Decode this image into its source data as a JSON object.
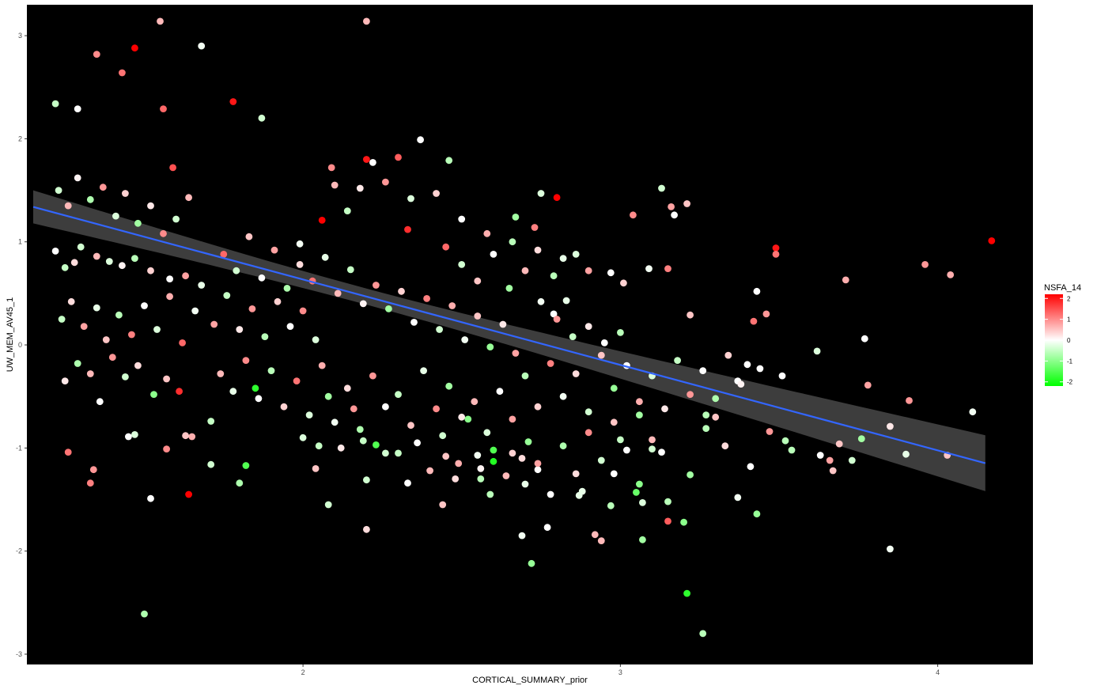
{
  "chart_data": {
    "type": "scatter",
    "xlabel": "CORTICAL_SUMMARY_prior",
    "ylabel": "UW_MEM_AV45_1",
    "xlim": [
      1.13,
      4.3
    ],
    "ylim": [
      -3.1,
      3.3
    ],
    "x_ticks": [
      2,
      3,
      4
    ],
    "y_ticks": [
      -3,
      -2,
      -1,
      0,
      1,
      2,
      3
    ],
    "background": "#000000",
    "grid": false,
    "legend": {
      "title": "NSFA_14",
      "position": "right",
      "type": "gradient",
      "ticks": [
        2,
        1,
        0,
        -1,
        -2
      ],
      "range": [
        -2.2,
        2.2
      ],
      "colors": {
        "low": "#00ff00",
        "mid": "#ffffff",
        "high": "#ff0000"
      }
    },
    "regression": {
      "method": "lm",
      "line_color": "#3366ff",
      "band_color": "#3d3d3d",
      "x_range": [
        1.15,
        4.15
      ],
      "intercept": 2.2925,
      "slope": -0.8289,
      "se_at_mean": 0.04,
      "se_slope_scale": 0.068,
      "x_mean": 2.2
    },
    "points_hint": "Approximately 1000 observations; selected readable points listed below (x, y, NSFA_14)",
    "points": [
      [
        1.55,
        3.14,
        0.6
      ],
      [
        2.2,
        3.14,
        0.6
      ],
      [
        1.68,
        2.9,
        -0.1
      ],
      [
        1.47,
        2.88,
        2.2
      ],
      [
        1.35,
        2.82,
        1.0
      ],
      [
        1.43,
        2.64,
        1.2
      ],
      [
        1.78,
        2.36,
        2.0
      ],
      [
        1.56,
        2.29,
        1.3
      ],
      [
        1.22,
        2.34,
        -0.5
      ],
      [
        1.29,
        2.29,
        0.0
      ],
      [
        1.87,
        2.2,
        -0.4
      ],
      [
        2.37,
        1.99,
        0.0
      ],
      [
        1.59,
        1.72,
        1.5
      ],
      [
        2.2,
        1.8,
        2.0
      ],
      [
        2.3,
        1.82,
        1.4
      ],
      [
        2.22,
        1.77,
        0.0
      ],
      [
        2.46,
        1.79,
        -0.6
      ],
      [
        2.09,
        1.72,
        1.0
      ],
      [
        2.8,
        1.43,
        2.2
      ],
      [
        2.75,
        1.47,
        -0.3
      ],
      [
        3.13,
        1.52,
        -0.4
      ],
      [
        3.16,
        1.34,
        0.8
      ],
      [
        3.21,
        1.37,
        0.5
      ],
      [
        3.17,
        1.26,
        0.0
      ],
      [
        3.04,
        1.26,
        1.0
      ],
      [
        2.73,
        1.14,
        1.1
      ],
      [
        2.67,
        1.24,
        -0.8
      ],
      [
        2.06,
        1.21,
        2.2
      ],
      [
        2.33,
        1.12,
        1.8
      ],
      [
        1.99,
        0.98,
        -0.1
      ],
      [
        3.49,
        0.94,
        2.0
      ],
      [
        3.49,
        0.88,
        1.2
      ],
      [
        4.17,
        1.01,
        2.2
      ],
      [
        3.96,
        0.78,
        0.9
      ],
      [
        4.04,
        0.68,
        0.7
      ],
      [
        3.71,
        0.63,
        0.7
      ],
      [
        3.43,
        0.52,
        0.0
      ],
      [
        3.46,
        0.3,
        0.9
      ],
      [
        3.42,
        0.23,
        1.2
      ],
      [
        3.15,
        0.74,
        1.1
      ],
      [
        3.09,
        0.74,
        -0.1
      ],
      [
        2.86,
        0.88,
        -0.3
      ],
      [
        2.97,
        0.7,
        0.0
      ],
      [
        3.01,
        0.6,
        0.4
      ],
      [
        2.79,
        0.67,
        -0.6
      ],
      [
        2.83,
        0.43,
        -0.2
      ],
      [
        2.79,
        0.3,
        0.0
      ],
      [
        3.22,
        0.29,
        0.5
      ],
      [
        3.77,
        0.06,
        0.0
      ],
      [
        3.62,
        -0.06,
        -0.3
      ],
      [
        3.63,
        -1.07,
        0.0
      ],
      [
        3.67,
        -1.22,
        0.5
      ],
      [
        3.69,
        -0.96,
        0.5
      ],
      [
        3.66,
        -1.12,
        0.8
      ],
      [
        3.73,
        -1.12,
        -0.4
      ],
      [
        3.78,
        -0.39,
        0.8
      ],
      [
        3.76,
        -0.91,
        -0.8
      ],
      [
        3.91,
        -0.54,
        0.9
      ],
      [
        3.85,
        -0.79,
        0.2
      ],
      [
        3.9,
        -1.06,
        -0.2
      ],
      [
        4.03,
        -1.07,
        0.5
      ],
      [
        4.11,
        -0.65,
        -0.1
      ],
      [
        3.85,
        -1.98,
        -0.1
      ],
      [
        3.52,
        -0.93,
        -0.6
      ],
      [
        3.54,
        -1.02,
        -0.6
      ],
      [
        3.51,
        -0.3,
        0.0
      ],
      [
        3.44,
        -0.23,
        0.0
      ],
      [
        3.4,
        -0.19,
        0.0
      ],
      [
        3.37,
        -0.35,
        0.0
      ],
      [
        3.47,
        -0.84,
        0.9
      ],
      [
        3.43,
        -1.64,
        -0.9
      ],
      [
        3.37,
        -1.48,
        -0.1
      ],
      [
        3.41,
        -1.18,
        0.0
      ],
      [
        3.33,
        -0.98,
        0.3
      ],
      [
        3.3,
        -0.7,
        0.5
      ],
      [
        3.27,
        -0.68,
        -0.6
      ],
      [
        3.27,
        -0.81,
        -0.6
      ],
      [
        3.26,
        -2.8,
        -0.6
      ],
      [
        3.21,
        -2.41,
        -1.8
      ],
      [
        3.2,
        -1.72,
        -1.0
      ],
      [
        3.22,
        -1.26,
        -0.8
      ],
      [
        3.13,
        -1.04,
        0.0
      ],
      [
        3.1,
        -1.01,
        -0.4
      ],
      [
        3.15,
        -1.71,
        1.4
      ],
      [
        3.15,
        -1.52,
        -0.6
      ],
      [
        3.07,
        -1.53,
        -0.3
      ],
      [
        3.07,
        -1.89,
        -0.8
      ],
      [
        3.05,
        -1.43,
        -1.3
      ],
      [
        3.06,
        -1.35,
        -1.0
      ],
      [
        3.0,
        -0.92,
        -0.5
      ],
      [
        2.98,
        -1.25,
        0.0
      ],
      [
        2.97,
        -1.56,
        -0.6
      ],
      [
        2.94,
        -1.9,
        0.6
      ],
      [
        2.92,
        -1.84,
        0.6
      ],
      [
        2.88,
        -1.42,
        -0.2
      ],
      [
        2.87,
        -1.46,
        -0.2
      ],
      [
        2.72,
        -2.12,
        -0.9
      ],
      [
        2.69,
        -1.85,
        -0.1
      ],
      [
        2.77,
        -1.77,
        0.0
      ],
      [
        2.74,
        -1.21,
        0.0
      ],
      [
        2.69,
        -1.1,
        0.3
      ],
      [
        2.71,
        -0.94,
        -0.9
      ],
      [
        2.64,
        -1.27,
        0.6
      ],
      [
        2.59,
        -1.45,
        -0.6
      ],
      [
        2.56,
        -1.3,
        -0.6
      ],
      [
        2.6,
        -1.13,
        -1.9
      ],
      [
        2.6,
        -1.02,
        -1.5
      ],
      [
        2.55,
        -1.07,
        -0.1
      ],
      [
        2.49,
        -1.15,
        0.7
      ],
      [
        2.45,
        -1.08,
        0.5
      ],
      [
        2.44,
        -1.55,
        0.5
      ],
      [
        2.33,
        -1.34,
        0.0
      ],
      [
        2.26,
        -1.05,
        -0.4
      ],
      [
        2.23,
        -0.97,
        -1.5
      ],
      [
        2.19,
        -0.93,
        -0.5
      ],
      [
        2.2,
        -1.31,
        -0.4
      ],
      [
        2.2,
        -1.79,
        0.3
      ],
      [
        2.08,
        -1.55,
        -0.4
      ],
      [
        2.05,
        -0.98,
        -0.5
      ],
      [
        1.64,
        -1.45,
        2.2
      ],
      [
        1.52,
        -1.49,
        0.0
      ],
      [
        1.57,
        -1.01,
        1.0
      ],
      [
        1.65,
        -0.89,
        0.7
      ],
      [
        1.71,
        -1.16,
        -0.4
      ],
      [
        1.82,
        -1.17,
        -1.5
      ],
      [
        1.8,
        -1.34,
        -0.7
      ],
      [
        1.5,
        -2.61,
        -0.7
      ],
      [
        1.34,
        -1.21,
        0.9
      ],
      [
        1.33,
        -1.34,
        1.1
      ],
      [
        1.26,
        -1.04,
        1.2
      ],
      [
        1.45,
        -0.89,
        0.0
      ],
      [
        1.47,
        -0.87,
        -0.3
      ],
      [
        1.61,
        -0.45,
        1.8
      ],
      [
        1.63,
        -0.88,
        0.5
      ],
      [
        1.71,
        -0.74,
        -0.5
      ],
      [
        1.85,
        -0.42,
        -1.8
      ],
      [
        1.22,
        0.91,
        0.0
      ],
      [
        1.25,
        0.75,
        -0.5
      ],
      [
        1.28,
        0.8,
        0.3
      ],
      [
        1.3,
        0.95,
        -0.4
      ],
      [
        1.35,
        0.86,
        0.6
      ],
      [
        1.39,
        0.81,
        -0.3
      ],
      [
        1.43,
        0.77,
        0.1
      ],
      [
        1.47,
        0.84,
        -0.6
      ],
      [
        1.52,
        0.72,
        0.4
      ],
      [
        1.58,
        0.64,
        0.0
      ],
      [
        1.63,
        0.67,
        0.8
      ],
      [
        1.68,
        0.58,
        -0.2
      ],
      [
        1.23,
        1.5,
        -0.4
      ],
      [
        1.26,
        1.35,
        0.6
      ],
      [
        1.29,
        1.62,
        0.1
      ],
      [
        1.33,
        1.41,
        -0.7
      ],
      [
        1.37,
        1.53,
        0.9
      ],
      [
        1.41,
        1.25,
        -0.3
      ],
      [
        1.44,
        1.47,
        0.4
      ],
      [
        1.48,
        1.18,
        -0.8
      ],
      [
        1.52,
        1.35,
        0.2
      ],
      [
        1.56,
        1.08,
        1.0
      ],
      [
        1.6,
        1.22,
        -0.4
      ],
      [
        1.64,
        1.43,
        0.6
      ],
      [
        1.24,
        0.25,
        -0.5
      ],
      [
        1.27,
        0.42,
        0.3
      ],
      [
        1.31,
        0.18,
        0.8
      ],
      [
        1.35,
        0.36,
        -0.2
      ],
      [
        1.38,
        0.05,
        0.5
      ],
      [
        1.42,
        0.29,
        -0.6
      ],
      [
        1.46,
        0.1,
        1.1
      ],
      [
        1.5,
        0.38,
        0.0
      ],
      [
        1.54,
        0.15,
        -0.3
      ],
      [
        1.58,
        0.47,
        0.7
      ],
      [
        1.62,
        0.02,
        1.3
      ],
      [
        1.66,
        0.33,
        -0.1
      ],
      [
        1.25,
        -0.35,
        0.2
      ],
      [
        1.29,
        -0.18,
        -0.7
      ],
      [
        1.33,
        -0.28,
        0.6
      ],
      [
        1.36,
        -0.55,
        0.0
      ],
      [
        1.4,
        -0.12,
        0.9
      ],
      [
        1.44,
        -0.31,
        -0.4
      ],
      [
        1.48,
        -0.2,
        0.3
      ],
      [
        1.53,
        -0.48,
        -1.0
      ],
      [
        1.57,
        -0.33,
        0.5
      ],
      [
        1.72,
        0.2,
        0.8
      ],
      [
        1.76,
        0.48,
        -0.5
      ],
      [
        1.8,
        0.15,
        0.2
      ],
      [
        1.84,
        0.35,
        0.9
      ],
      [
        1.88,
        0.08,
        -0.6
      ],
      [
        1.92,
        0.42,
        0.4
      ],
      [
        1.96,
        0.18,
        0.0
      ],
      [
        2.0,
        0.33,
        1.0
      ],
      [
        2.04,
        0.05,
        -0.3
      ],
      [
        1.75,
        0.88,
        1.3
      ],
      [
        1.79,
        0.72,
        -0.4
      ],
      [
        1.83,
        1.05,
        0.5
      ],
      [
        1.87,
        0.65,
        0.0
      ],
      [
        1.91,
        0.92,
        0.8
      ],
      [
        1.95,
        0.55,
        -0.7
      ],
      [
        1.99,
        0.78,
        0.3
      ],
      [
        2.03,
        0.62,
        1.2
      ],
      [
        2.07,
        0.85,
        -0.2
      ],
      [
        2.11,
        0.5,
        0.6
      ],
      [
        2.15,
        0.73,
        -0.5
      ],
      [
        2.19,
        0.4,
        0.1
      ],
      [
        2.23,
        0.58,
        0.9
      ],
      [
        2.27,
        0.35,
        -0.8
      ],
      [
        2.31,
        0.52,
        0.4
      ],
      [
        2.35,
        0.22,
        0.0
      ],
      [
        2.39,
        0.45,
        1.1
      ],
      [
        2.43,
        0.15,
        -0.4
      ],
      [
        2.47,
        0.38,
        0.7
      ],
      [
        2.51,
        0.05,
        -0.1
      ],
      [
        2.55,
        0.28,
        0.5
      ],
      [
        2.59,
        -0.02,
        -0.9
      ],
      [
        2.63,
        0.2,
        0.2
      ],
      [
        2.67,
        -0.08,
        0.8
      ],
      [
        1.74,
        -0.28,
        0.6
      ],
      [
        1.78,
        -0.45,
        -0.2
      ],
      [
        1.82,
        -0.15,
        1.0
      ],
      [
        1.86,
        -0.52,
        0.0
      ],
      [
        1.9,
        -0.25,
        -0.6
      ],
      [
        1.94,
        -0.6,
        0.4
      ],
      [
        1.98,
        -0.35,
        1.2
      ],
      [
        2.02,
        -0.68,
        -0.3
      ],
      [
        2.06,
        -0.2,
        0.7
      ],
      [
        2.1,
        -0.75,
        -0.1
      ],
      [
        2.14,
        -0.42,
        0.3
      ],
      [
        2.18,
        -0.82,
        -0.7
      ],
      [
        2.22,
        -0.3,
        0.9
      ],
      [
        2.26,
        -0.6,
        0.0
      ],
      [
        2.3,
        -0.48,
        -0.5
      ],
      [
        2.34,
        -0.78,
        0.5
      ],
      [
        2.38,
        -0.25,
        -0.2
      ],
      [
        2.42,
        -0.62,
        1.0
      ],
      [
        2.46,
        -0.4,
        -0.8
      ],
      [
        2.5,
        -0.7,
        0.2
      ],
      [
        2.54,
        -0.55,
        0.6
      ],
      [
        2.58,
        -0.85,
        -0.3
      ],
      [
        2.62,
        -0.45,
        0.0
      ],
      [
        2.66,
        -0.72,
        0.8
      ],
      [
        2.7,
        -0.3,
        -0.6
      ],
      [
        2.74,
        -0.6,
        0.4
      ],
      [
        2.78,
        -0.18,
        1.1
      ],
      [
        2.82,
        -0.5,
        -0.1
      ],
      [
        2.86,
        -0.28,
        0.3
      ],
      [
        2.9,
        -0.65,
        -0.4
      ],
      [
        2.94,
        -0.1,
        0.5
      ],
      [
        2.98,
        -0.42,
        -0.9
      ],
      [
        3.02,
        -0.2,
        0.0
      ],
      [
        3.06,
        -0.55,
        0.7
      ],
      [
        3.1,
        -0.3,
        -0.3
      ],
      [
        3.14,
        -0.62,
        0.2
      ],
      [
        3.18,
        -0.15,
        -0.5
      ],
      [
        3.22,
        -0.48,
        0.9
      ],
      [
        3.26,
        -0.25,
        0.0
      ],
      [
        3.3,
        -0.52,
        -0.7
      ],
      [
        3.34,
        -0.1,
        0.4
      ],
      [
        3.38,
        -0.38,
        0.1
      ],
      [
        2.1,
        1.55,
        0.6
      ],
      [
        2.14,
        1.3,
        -0.5
      ],
      [
        2.18,
        1.52,
        0.2
      ],
      [
        2.26,
        1.58,
        0.9
      ],
      [
        2.34,
        1.42,
        -0.3
      ],
      [
        2.42,
        1.47,
        0.4
      ],
      [
        2.5,
        1.22,
        0.0
      ],
      [
        2.58,
        1.08,
        0.7
      ],
      [
        2.66,
        1.0,
        -0.6
      ],
      [
        2.74,
        0.92,
        0.3
      ],
      [
        2.82,
        0.84,
        -0.2
      ],
      [
        2.9,
        0.72,
        0.8
      ],
      [
        2.45,
        0.95,
        1.3
      ],
      [
        2.5,
        0.78,
        -0.4
      ],
      [
        2.55,
        0.62,
        0.5
      ],
      [
        2.6,
        0.88,
        0.0
      ],
      [
        2.65,
        0.55,
        -0.8
      ],
      [
        2.7,
        0.72,
        0.6
      ],
      [
        2.75,
        0.42,
        -0.1
      ],
      [
        2.8,
        0.25,
        0.9
      ],
      [
        2.85,
        0.08,
        -0.5
      ],
      [
        2.9,
        0.18,
        0.2
      ],
      [
        2.95,
        0.02,
        0.0
      ],
      [
        3.0,
        0.12,
        -0.6
      ],
      [
        2.66,
        -1.05,
        0.4
      ],
      [
        2.7,
        -1.35,
        -0.2
      ],
      [
        2.74,
        -1.15,
        0.8
      ],
      [
        2.78,
        -1.45,
        0.0
      ],
      [
        2.82,
        -0.98,
        -0.7
      ],
      [
        2.86,
        -1.25,
        0.3
      ],
      [
        2.9,
        -0.85,
        1.0
      ],
      [
        2.94,
        -1.12,
        -0.4
      ],
      [
        2.98,
        -0.75,
        0.5
      ],
      [
        3.02,
        -1.02,
        0.0
      ],
      [
        3.06,
        -0.68,
        -0.8
      ],
      [
        3.1,
        -0.92,
        0.6
      ],
      [
        2.0,
        -0.9,
        -0.3
      ],
      [
        2.04,
        -1.2,
        0.5
      ],
      [
        2.08,
        -0.5,
        -0.8
      ],
      [
        2.12,
        -1.0,
        0.2
      ],
      [
        2.16,
        -0.62,
        0.9
      ],
      [
        2.3,
        -1.05,
        -0.5
      ],
      [
        2.36,
        -0.95,
        0.0
      ],
      [
        2.4,
        -1.22,
        0.6
      ],
      [
        2.44,
        -0.88,
        -0.4
      ],
      [
        2.48,
        -1.3,
        0.3
      ],
      [
        2.52,
        -0.72,
        -1.0
      ],
      [
        2.56,
        -1.2,
        0.1
      ]
    ]
  }
}
